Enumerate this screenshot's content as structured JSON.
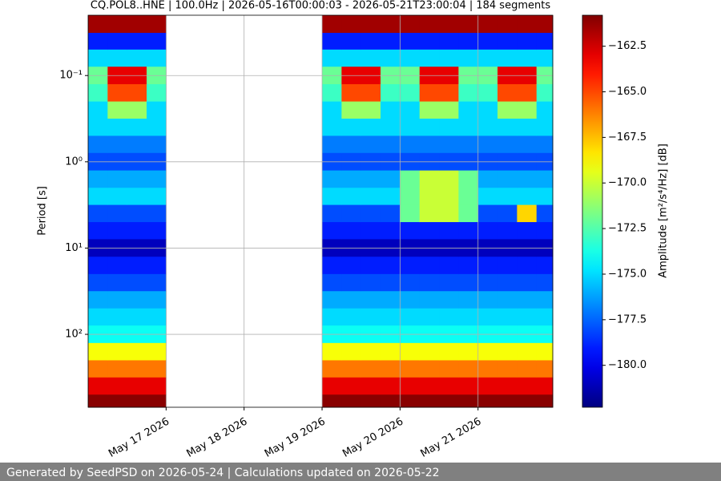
{
  "chart_data": {
    "type": "heatmap",
    "title": "CQ.POL8..HNE | 100.0Hz | 2026-05-16T00:00:03 - 2026-05-21T23:00:04 | 184 segments",
    "y_label": "Period [s]",
    "colorbar_label": "Amplitude [m²/s⁴/Hz] [dB]",
    "colormap": "jet",
    "clim": [
      -182.3,
      -160.8
    ],
    "colorbar_ticks": [
      {
        "value": -162.5,
        "label": "−162.5"
      },
      {
        "value": -165,
        "label": "−165.0"
      },
      {
        "value": -167.5,
        "label": "−167.5"
      },
      {
        "value": -170,
        "label": "−170.0"
      },
      {
        "value": -172.5,
        "label": "−172.5"
      },
      {
        "value": -175,
        "label": "−175.0"
      },
      {
        "value": -177.5,
        "label": "−177.5"
      },
      {
        "value": -180,
        "label": "−180.0"
      }
    ],
    "log_y": true,
    "y_inverted": true,
    "grid": true,
    "xlim": [
      "2026-05-16T00:00",
      "2026-05-21T23:00"
    ],
    "xticks": [
      {
        "value": "2026-05-17T00:00",
        "label": "May 17 2026"
      },
      {
        "value": "2026-05-18T00:00",
        "label": "May 18 2026"
      },
      {
        "value": "2026-05-19T00:00",
        "label": "May 19 2026"
      },
      {
        "value": "2026-05-20T00:00",
        "label": "May 20 2026"
      },
      {
        "value": "2026-05-21T00:00",
        "label": "May 21 2026"
      }
    ],
    "ylim": [
      0.02,
      700
    ],
    "yticks": [
      {
        "value": 0.1,
        "label": "10⁻¹"
      },
      {
        "value": 1,
        "label": "10⁰"
      },
      {
        "value": 10,
        "label": "10¹"
      },
      {
        "value": 100,
        "label": "10²"
      }
    ],
    "time_bins": [
      "2026-05-16T00:00",
      "2026-05-16T06:00",
      "2026-05-16T12:00",
      "2026-05-16T18:00",
      "2026-05-17T00:00",
      "2026-05-19T00:00",
      "2026-05-19T06:00",
      "2026-05-19T12:00",
      "2026-05-19T18:00",
      "2026-05-20T00:00",
      "2026-05-20T06:00",
      "2026-05-20T12:00",
      "2026-05-20T18:00",
      "2026-05-21T00:00",
      "2026-05-21T06:00",
      "2026-05-21T12:00",
      "2026-05-21T18:00",
      "2026-05-21T23:00"
    ],
    "period_bins": [
      0.02,
      0.032,
      0.05,
      0.079,
      0.126,
      0.2,
      0.316,
      0.5,
      0.79,
      1.26,
      2,
      3.16,
      5,
      7.9,
      12.6,
      20,
      31.6,
      50,
      79,
      126,
      200,
      316,
      500,
      700
    ],
    "values": [
      [
        -161.5,
        -179,
        -175,
        -172,
        -173,
        -175,
        -175,
        -177,
        -178,
        -176,
        -175,
        -178,
        -179,
        -181,
        -179,
        -178,
        -176,
        -175,
        -174,
        -169,
        -166,
        -163,
        -161
      ],
      [
        -161.5,
        -179,
        -175,
        -163,
        -165,
        -171,
        -175,
        -177,
        -178,
        -176,
        -175,
        -178,
        -179,
        -181,
        -179,
        -178,
        -176,
        -175,
        -174,
        -169,
        -166,
        -163,
        -161
      ],
      [
        -161.5,
        -179,
        -175,
        -163,
        -165,
        -171,
        -175,
        -177,
        -178,
        -176,
        -175,
        -178,
        -179,
        -181,
        -179,
        -178,
        -176,
        -175,
        -174,
        -169,
        -166,
        -163,
        -161
      ],
      [
        -161.5,
        -179,
        -175,
        -172,
        -173,
        -175,
        -175,
        -177,
        -178,
        -176,
        -175,
        -178,
        -179,
        -181,
        -179,
        -178,
        -176,
        -175,
        -174,
        -169,
        -166,
        -163,
        -161
      ],
      null,
      [
        -161.5,
        -179,
        -175,
        -172,
        -173,
        -175,
        -175,
        -177,
        -178,
        -176,
        -175,
        -178,
        -179,
        -181,
        -179,
        -178,
        -176,
        -175,
        -174,
        -169,
        -166,
        -163,
        -161
      ],
      [
        -161.5,
        -179,
        -175,
        -163,
        -165,
        -171,
        -175,
        -177,
        -178,
        -176,
        -175,
        -178,
        -179,
        -181,
        -179,
        -178,
        -176,
        -175,
        -174,
        -169,
        -166,
        -163,
        -161
      ],
      [
        -161.5,
        -179,
        -175,
        -163,
        -165,
        -171,
        -175,
        -177,
        -178,
        -176,
        -175,
        -178,
        -179,
        -181,
        -179,
        -178,
        -176,
        -175,
        -174,
        -169,
        -166,
        -163,
        -161
      ],
      [
        -161.5,
        -179,
        -175,
        -172,
        -173,
        -175,
        -175,
        -177,
        -178,
        -176,
        -175,
        -178,
        -179,
        -181,
        -179,
        -178,
        -176,
        -175,
        -174,
        -169,
        -166,
        -163,
        -161
      ],
      [
        -161.5,
        -179,
        -175,
        -172,
        -173,
        -175,
        -175,
        -177,
        -178,
        -172,
        -172,
        -172,
        -179,
        -181,
        -179,
        -178,
        -176,
        -175,
        -174,
        -169,
        -166,
        -163,
        -161
      ],
      [
        -161.5,
        -179,
        -175,
        -163,
        -165,
        -171,
        -175,
        -177,
        -178,
        -170,
        -170,
        -170,
        -179,
        -181,
        -179,
        -178,
        -176,
        -175,
        -174,
        -169,
        -166,
        -163,
        -161
      ],
      [
        -161.5,
        -179,
        -175,
        -163,
        -165,
        -171,
        -175,
        -177,
        -178,
        -170,
        -170,
        -170,
        -179,
        -181,
        -179,
        -178,
        -176,
        -175,
        -174,
        -169,
        -166,
        -163,
        -161
      ],
      [
        -161.5,
        -179,
        -175,
        -172,
        -173,
        -175,
        -175,
        -177,
        -178,
        -172,
        -172,
        -172,
        -179,
        -181,
        -179,
        -178,
        -176,
        -175,
        -174,
        -169,
        -166,
        -163,
        -161
      ],
      [
        -161.5,
        -179,
        -175,
        -172,
        -173,
        -175,
        -175,
        -177,
        -178,
        -176,
        -175,
        -178,
        -179,
        -181,
        -179,
        -178,
        -176,
        -175,
        -174,
        -169,
        -166,
        -163,
        -161
      ],
      [
        -161.5,
        -179,
        -175,
        -163,
        -165,
        -171,
        -175,
        -177,
        -178,
        -176,
        -175,
        -178,
        -179,
        -181,
        -179,
        -178,
        -176,
        -175,
        -174,
        -169,
        -166,
        -163,
        -161
      ],
      [
        -161.5,
        -179,
        -175,
        -163,
        -165,
        -171,
        -175,
        -177,
        -178,
        -176,
        -175,
        -168,
        -179,
        -181,
        -179,
        -178,
        -176,
        -175,
        -174,
        -169,
        -166,
        -163,
        -161
      ],
      [
        -161.5,
        -179,
        -175,
        -172,
        -173,
        -175,
        -175,
        -177,
        -178,
        -176,
        -175,
        -178,
        -179,
        -181,
        -179,
        -178,
        -176,
        -175,
        -174,
        -169,
        -166,
        -163,
        -161
      ]
    ]
  },
  "footer": {
    "text": "Generated by SeedPSD on 2026-05-24 | Calculations updated on 2026-05-22"
  }
}
